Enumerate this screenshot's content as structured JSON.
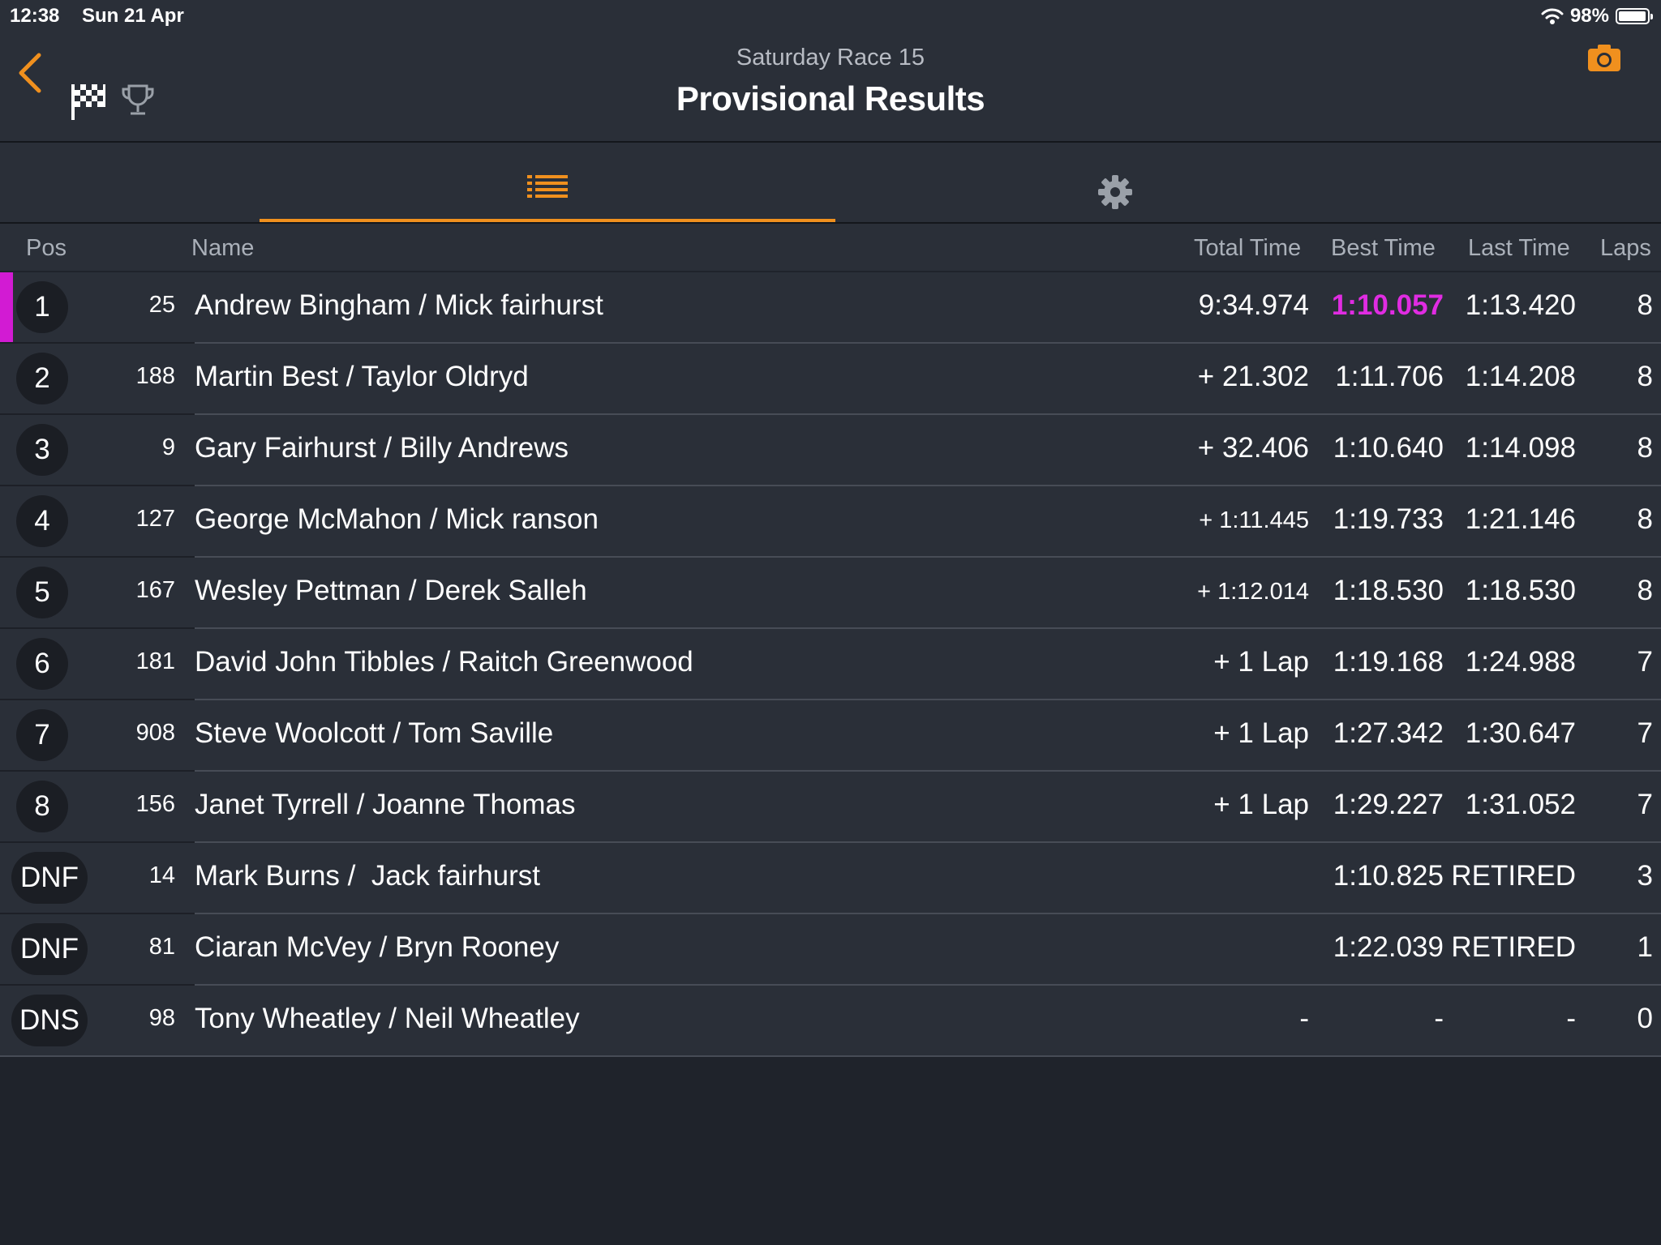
{
  "status": {
    "time": "12:38",
    "date": "Sun 21 Apr",
    "battery": "98%"
  },
  "header": {
    "subtitle": "Saturday Race 15",
    "title": "Provisional Results"
  },
  "columns": {
    "pos": "Pos",
    "name": "Name",
    "total": "Total Time",
    "best": "Best Time",
    "last": "Last Time",
    "laps": "Laps"
  },
  "colors": {
    "accent": "#f0901e",
    "fastest": "#e02ce2",
    "leader_marker": "#d21bd3"
  },
  "icons": [
    "back-chevron-icon",
    "checkered-flag-icon",
    "trophy-icon",
    "camera-icon",
    "list-icon",
    "gear-icon",
    "wifi-icon",
    "battery-icon"
  ],
  "rows": [
    {
      "pos": "1",
      "num": "25",
      "name": "Andrew Bingham / Mick fairhurst",
      "total": "9:34.974",
      "best": "1:10.057",
      "last": "1:13.420",
      "laps": "8"
    },
    {
      "pos": "2",
      "num": "188",
      "name": "Martin Best / Taylor Oldryd",
      "total": "+ 21.302",
      "best": "1:11.706",
      "last": "1:14.208",
      "laps": "8"
    },
    {
      "pos": "3",
      "num": "9",
      "name": "Gary Fairhurst / Billy Andrews",
      "total": "+ 32.406",
      "best": "1:10.640",
      "last": "1:14.098",
      "laps": "8"
    },
    {
      "pos": "4",
      "num": "127",
      "name": "George McMahon / Mick ranson",
      "total": "+ 1:11.445",
      "best": "1:19.733",
      "last": "1:21.146",
      "laps": "8"
    },
    {
      "pos": "5",
      "num": "167",
      "name": "Wesley Pettman / Derek Salleh",
      "total": "+ 1:12.014",
      "best": "1:18.530",
      "last": "1:18.530",
      "laps": "8"
    },
    {
      "pos": "6",
      "num": "181",
      "name": "David John Tibbles / Raitch Greenwood",
      "total": "+ 1 Lap",
      "best": "1:19.168",
      "last": "1:24.988",
      "laps": "7"
    },
    {
      "pos": "7",
      "num": "908",
      "name": "Steve Woolcott / Tom Saville",
      "total": "+ 1 Lap",
      "best": "1:27.342",
      "last": "1:30.647",
      "laps": "7"
    },
    {
      "pos": "8",
      "num": "156",
      "name": "Janet Tyrrell / Joanne Thomas",
      "total": "+ 1 Lap",
      "best": "1:29.227",
      "last": "1:31.052",
      "laps": "7"
    },
    {
      "pos": "DNF",
      "num": "14",
      "name": "Mark Burns /  Jack fairhurst",
      "total": "",
      "best": "1:10.825",
      "last": "RETIRED",
      "laps": "3"
    },
    {
      "pos": "DNF",
      "num": "81",
      "name": "Ciaran McVey / Bryn Rooney",
      "total": "",
      "best": "1:22.039",
      "last": "RETIRED",
      "laps": "1"
    },
    {
      "pos": "DNS",
      "num": "98",
      "name": "Tony Wheatley / Neil Wheatley",
      "total": "-",
      "best": "-",
      "last": "-",
      "laps": "0"
    }
  ]
}
